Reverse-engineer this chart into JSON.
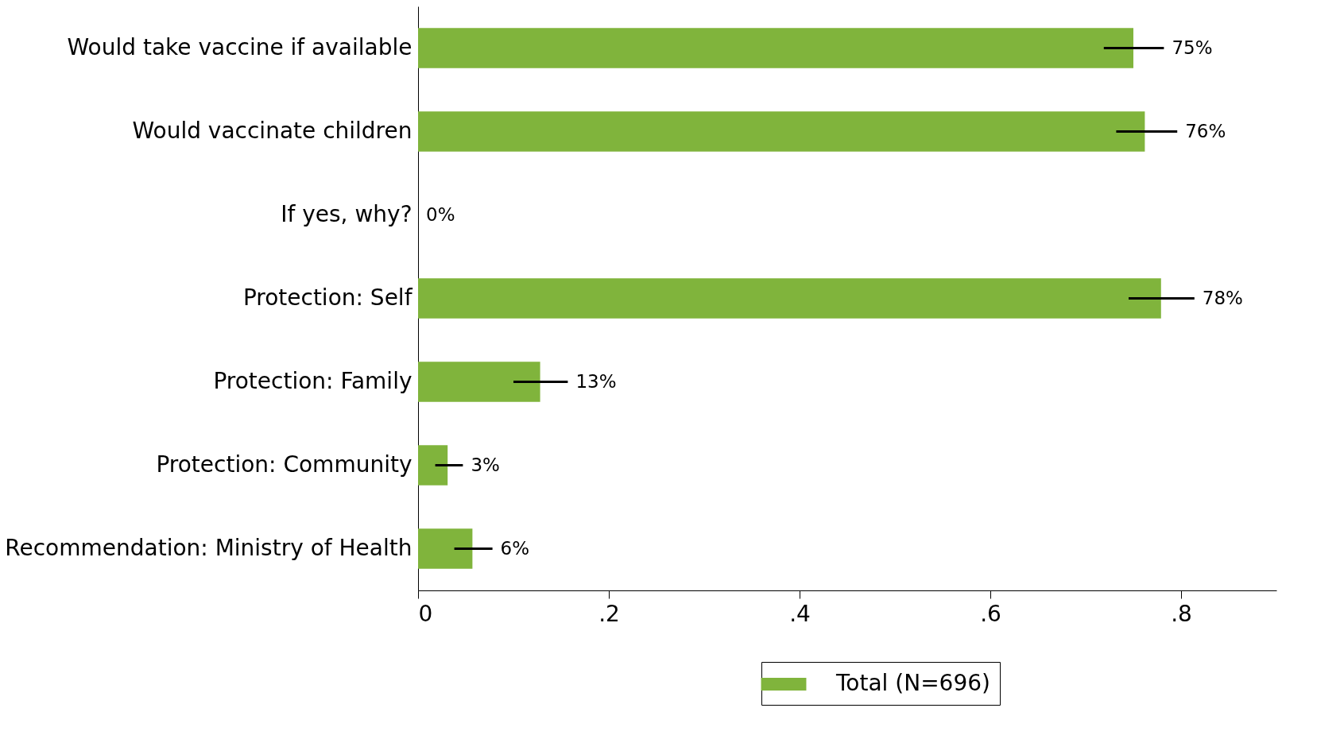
{
  "chart_data": {
    "type": "bar",
    "orientation": "horizontal",
    "categories": [
      "Would take vaccine if available",
      "Would vaccinate children",
      "If yes, why?",
      "Protection: Self",
      "Protection: Family",
      "Protection: Community",
      "Recommendation: Ministry of Health"
    ],
    "series": [
      {
        "name": "Total (N=696)",
        "color": "#80b43c",
        "values": [
          0.75,
          0.762,
          0,
          0.779,
          0.128,
          0.031,
          0.057
        ],
        "errors": [
          [
            0.719,
            0.782
          ],
          [
            0.732,
            0.796
          ],
          null,
          [
            0.745,
            0.814
          ],
          [
            0.1,
            0.157
          ],
          [
            0.018,
            0.047
          ],
          [
            0.038,
            0.078
          ]
        ],
        "value_labels": [
          "75%",
          "76%",
          "0%",
          "78%",
          "13%",
          "3%",
          "6%"
        ]
      }
    ],
    "xlim": [
      0,
      0.9
    ],
    "xticks": [
      0,
      {
        "value": 0.2,
        "label": ".2"
      },
      {
        "value": 0.4,
        "label": ".4"
      },
      {
        "value": 0.6,
        "label": ".6"
      },
      {
        "value": 0.8,
        "label": ".8"
      }
    ],
    "grid": false,
    "legend": "bottom"
  }
}
